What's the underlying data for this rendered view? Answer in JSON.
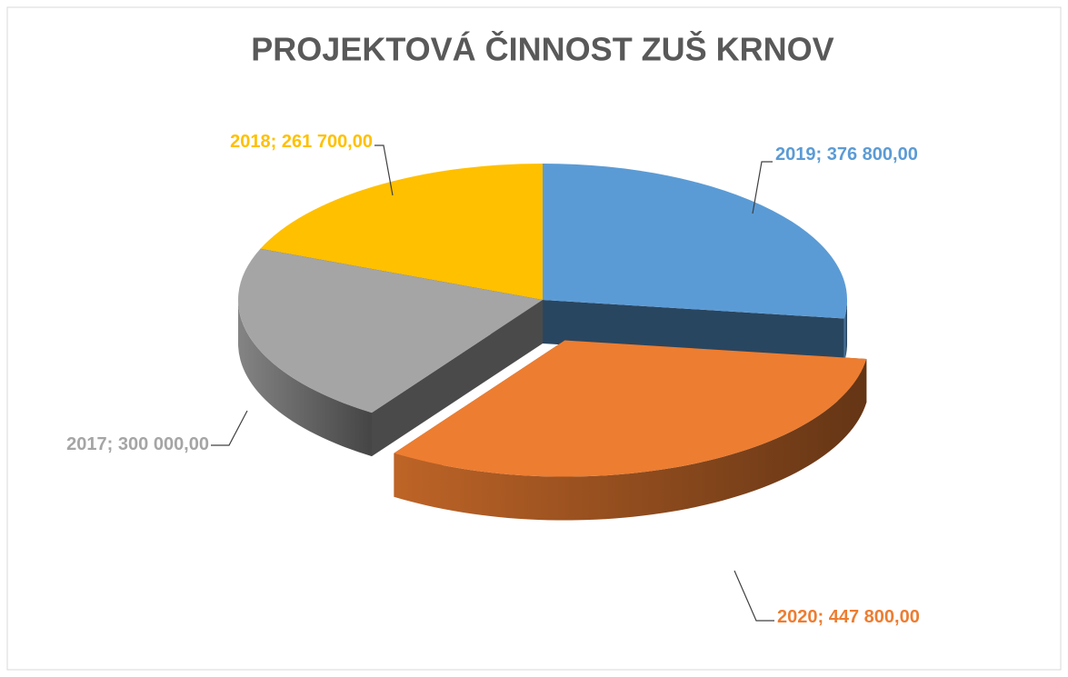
{
  "chart_data": {
    "type": "pie3d",
    "title": "PROJEKTOVÁ ČINNOST ZUŠ KRNOV",
    "categories": [
      "2019",
      "2020",
      "2017",
      "2018"
    ],
    "values": [
      376800,
      447800,
      300000,
      261700
    ],
    "value_labels": [
      "376 800,00",
      "447 800,00",
      "300 000,00",
      "261 700,00"
    ],
    "label_separator": "; ",
    "colors": [
      "#5b9bd5",
      "#ed7d31",
      "#a5a5a5",
      "#ffc000"
    ],
    "exploded": [
      false,
      true,
      false,
      false
    ]
  }
}
